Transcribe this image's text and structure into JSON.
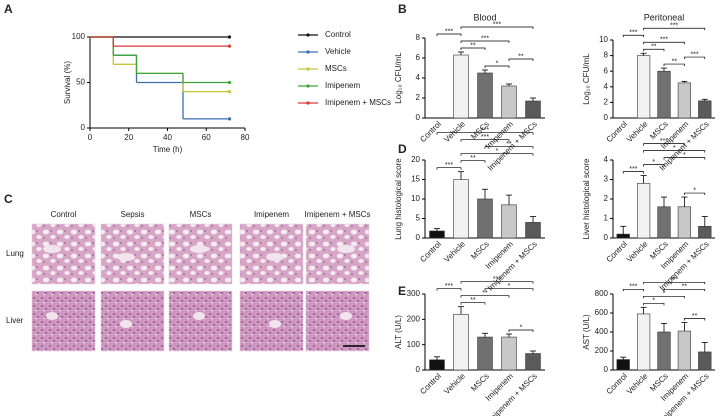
{
  "panels": [
    "A",
    "B",
    "C",
    "D",
    "E"
  ],
  "histology": {
    "columns": [
      "Control",
      "Sepsis",
      "MSCs",
      "Imipenem",
      "Imipenem + MSCs"
    ],
    "rows": [
      "Lung",
      "Liver"
    ]
  },
  "chart_data": [
    {
      "type": "line",
      "drawstyle": "steps-post",
      "xlabel": "Time (h)",
      "ylabel": "Survival (%)",
      "x": [
        0,
        12,
        24,
        48,
        72
      ],
      "xlim": [
        0,
        80
      ],
      "xticks": [
        0,
        20,
        40,
        60,
        80
      ],
      "ylim": [
        0,
        100
      ],
      "yticks": [
        0,
        50,
        100
      ],
      "series": [
        {
          "name": "Control",
          "color": "#111111",
          "values": [
            100,
            100,
            100,
            100,
            100
          ]
        },
        {
          "name": "Vehicle",
          "color": "#3a6fb0",
          "values": [
            100,
            80,
            50,
            10,
            10
          ]
        },
        {
          "name": "MSCs",
          "color": "#c8c43a",
          "values": [
            100,
            70,
            60,
            40,
            40
          ]
        },
        {
          "name": "Imipenem",
          "color": "#3aa53a",
          "values": [
            100,
            80,
            60,
            50,
            50
          ]
        },
        {
          "name": "Imipenem + MSCs",
          "color": "#d63a3a",
          "values": [
            100,
            90,
            90,
            90,
            90
          ]
        }
      ]
    },
    {
      "type": "bar",
      "title": "Blood",
      "ylabel": "Log₁₀ CFU/mL",
      "categories": [
        "Control",
        "Vehicle",
        "MSCs",
        "Imipenem",
        "Imipenem + MSCs"
      ],
      "values": [
        0,
        6.3,
        4.5,
        3.2,
        1.7
      ],
      "errors": [
        0,
        0.3,
        0.3,
        0.2,
        0.3
      ],
      "colors": [
        "#111111",
        "#f2f2f2",
        "#707070",
        "#c8c8c8",
        "#5a5a5a"
      ],
      "ylim": [
        0,
        8
      ],
      "yticks": [
        0,
        2,
        4,
        6,
        8
      ],
      "significance": [
        {
          "from": 2,
          "to": 3,
          "label": "*"
        },
        {
          "from": 3,
          "to": 4,
          "label": "**"
        },
        {
          "from": 1,
          "to": 2,
          "label": "**"
        },
        {
          "from": 1,
          "to": 3,
          "label": "***"
        },
        {
          "from": 0,
          "to": 1,
          "label": "***"
        },
        {
          "from": 1,
          "to": 4,
          "label": "***"
        }
      ]
    },
    {
      "type": "bar",
      "title": "Peritoneal",
      "ylabel": "Log₁₀ CFU/mL",
      "categories": [
        "Control",
        "Vehicle",
        "MSCs",
        "Imipenem",
        "Imipenem + MSCs"
      ],
      "values": [
        0,
        8,
        6,
        4.5,
        2.2
      ],
      "errors": [
        0,
        0.3,
        0.4,
        0.2,
        0.2
      ],
      "colors": [
        "#111111",
        "#f2f2f2",
        "#707070",
        "#c8c8c8",
        "#5a5a5a"
      ],
      "ylim": [
        0,
        10
      ],
      "yticks": [
        0,
        2,
        4,
        6,
        8,
        10
      ],
      "significance": [
        {
          "from": 2,
          "to": 3,
          "label": "**"
        },
        {
          "from": 3,
          "to": 4,
          "label": "***"
        },
        {
          "from": 1,
          "to": 2,
          "label": "**"
        },
        {
          "from": 1,
          "to": 3,
          "label": "***"
        },
        {
          "from": 0,
          "to": 1,
          "label": "***"
        },
        {
          "from": 1,
          "to": 4,
          "label": "***"
        }
      ]
    },
    {
      "type": "bar",
      "ylabel": "Lung histological score",
      "categories": [
        "Control",
        "Vehicle",
        "MSCs",
        "Imipenem",
        "Imipenem + MSCs"
      ],
      "values": [
        1.8,
        15,
        10,
        8.5,
        4
      ],
      "errors": [
        0.6,
        2,
        2.5,
        2.5,
        1.5
      ],
      "colors": [
        "#111111",
        "#f2f2f2",
        "#707070",
        "#c8c8c8",
        "#5a5a5a"
      ],
      "ylim": [
        0,
        20
      ],
      "yticks": [
        0,
        5,
        10,
        15,
        20
      ],
      "significance": [
        {
          "from": 0,
          "to": 1,
          "label": "***"
        },
        {
          "from": 1,
          "to": 2,
          "label": "**"
        },
        {
          "from": 1,
          "to": 4,
          "label": "*"
        },
        {
          "from": 2,
          "to": 4,
          "label": "**"
        },
        {
          "from": 1,
          "to": 3,
          "label": "***"
        },
        {
          "from": 0,
          "to": 4,
          "label": "***"
        }
      ]
    },
    {
      "type": "bar",
      "ylabel": "Liver histological score",
      "categories": [
        "Control",
        "Vehicle",
        "MSCs",
        "Imipenem",
        "Imipenem + MSCs"
      ],
      "values": [
        0.2,
        2.8,
        1.6,
        1.6,
        0.6
      ],
      "errors": [
        0.4,
        0.4,
        0.5,
        0.5,
        0.5
      ],
      "colors": [
        "#111111",
        "#f2f2f2",
        "#707070",
        "#c8c8c8",
        "#5a5a5a"
      ],
      "ylim": [
        0,
        4
      ],
      "yticks": [
        0,
        1,
        2,
        3,
        4
      ],
      "significance": [
        {
          "from": 0,
          "to": 1,
          "label": "***"
        },
        {
          "from": 1,
          "to": 2,
          "label": "*"
        },
        {
          "from": 3,
          "to": 4,
          "label": "*"
        },
        {
          "from": 2,
          "to": 4,
          "label": "*"
        },
        {
          "from": 1,
          "to": 4,
          "label": "*"
        },
        {
          "from": 1,
          "to": 3,
          "label": "***"
        }
      ]
    },
    {
      "type": "bar",
      "ylabel": "ALT (U/L)",
      "categories": [
        "Control",
        "Vehicle",
        "MSCs",
        "Imipenem",
        "Imipenem + MSCs"
      ],
      "values": [
        40,
        220,
        130,
        130,
        65
      ],
      "errors": [
        12,
        30,
        15,
        12,
        10
      ],
      "colors": [
        "#111111",
        "#f2f2f2",
        "#707070",
        "#c8c8c8",
        "#5a5a5a"
      ],
      "ylim": [
        0,
        300
      ],
      "yticks": [
        0,
        100,
        200,
        300
      ],
      "significance": [
        {
          "from": 3,
          "to": 4,
          "label": "*"
        },
        {
          "from": 1,
          "to": 2,
          "label": "**"
        },
        {
          "from": 1,
          "to": 3,
          "label": "**"
        },
        {
          "from": 0,
          "to": 1,
          "label": "***"
        },
        {
          "from": 2,
          "to": 4,
          "label": "*"
        },
        {
          "from": 1,
          "to": 4,
          "label": "***"
        }
      ]
    },
    {
      "type": "bar",
      "ylabel": "AST (U/L)",
      "categories": [
        "Control",
        "Vehicle",
        "MSCs",
        "Imipenem",
        "Imipenem + MSCs"
      ],
      "values": [
        110,
        590,
        400,
        410,
        190
      ],
      "errors": [
        25,
        70,
        90,
        90,
        100
      ],
      "colors": [
        "#111111",
        "#f2f2f2",
        "#707070",
        "#c8c8c8",
        "#5a5a5a"
      ],
      "ylim": [
        0,
        800
      ],
      "yticks": [
        0,
        200,
        400,
        600,
        800
      ],
      "significance": [
        {
          "from": 3,
          "to": 4,
          "label": "**"
        },
        {
          "from": 1,
          "to": 2,
          "label": "*"
        },
        {
          "from": 1,
          "to": 3,
          "label": "*"
        },
        {
          "from": 2,
          "to": 4,
          "label": "**"
        },
        {
          "from": 0,
          "to": 1,
          "label": "***"
        },
        {
          "from": 1,
          "to": 4,
          "label": "***"
        }
      ]
    }
  ]
}
